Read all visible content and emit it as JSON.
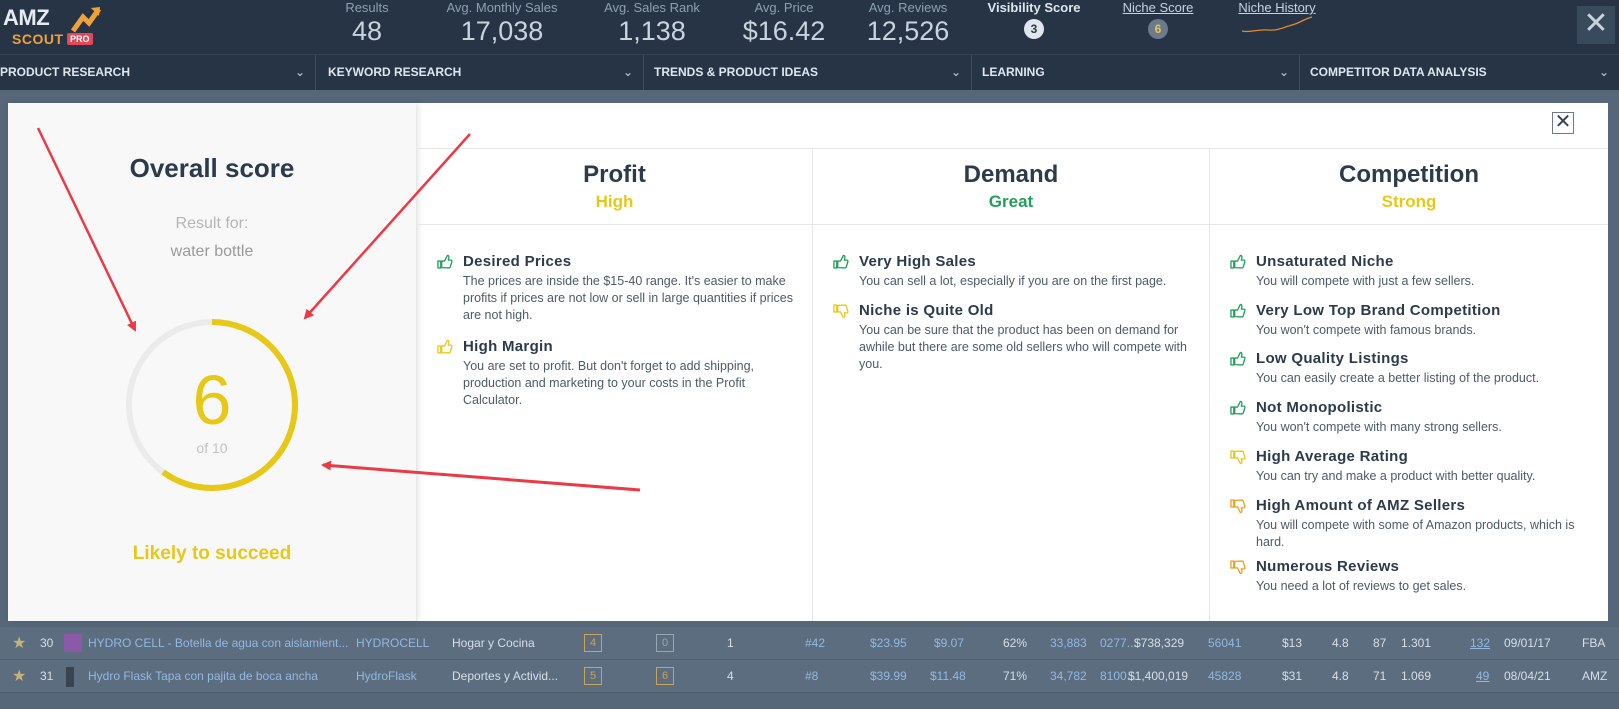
{
  "header": {
    "logo": {
      "amz": "AMZ",
      "scout": "SCOUT",
      "pro": "PRO"
    },
    "stats": [
      {
        "label": "Results",
        "value": "48"
      },
      {
        "label": "Avg. Monthly Sales",
        "value": "17,038"
      },
      {
        "label": "Avg. Sales Rank",
        "value": "1,138"
      },
      {
        "label": "Avg. Price",
        "value": "$16.42"
      },
      {
        "label": "Avg. Reviews",
        "value": "12,526"
      }
    ],
    "visibility_score": {
      "label": "Visibility Score",
      "value": "3"
    },
    "niche_score": {
      "label": "Niche Score",
      "value": "6"
    },
    "niche_history": {
      "label": "Niche History"
    },
    "close_label": "✕"
  },
  "nav": [
    "PRODUCT RESEARCH",
    "KEYWORD RESEARCH",
    "TRENDS & PRODUCT IDEAS",
    "LEARNING",
    "COMPETITOR DATA ANALYSIS"
  ],
  "rows": [
    {
      "rank": "30",
      "title": "HYDRO CELL - Botella de agua con aislamient...",
      "brand": "HYDROCELL",
      "category": "Hogar y Cocina",
      "box1": "4",
      "box2": "0",
      "sellers": "1",
      "bsr": "#42",
      "price": "$23.95",
      "fees": "$9.07",
      "net": "62%",
      "sales": "33,883",
      "code": "0277...",
      "revenue": "$738,329",
      "reviews": "56041",
      "rpr": "$13",
      "rating": "4.8",
      "lqs": "87",
      "weight": "1.301",
      "variations": "132",
      "date": "09/01/17",
      "seller": "FBA"
    },
    {
      "rank": "31",
      "title": "Hydro Flask Tapa con pajita de boca ancha",
      "brand": "HydroFlask",
      "category": "Deportes y Activid...",
      "box1": "5",
      "box2": "6",
      "sellers": "4",
      "bsr": "#8",
      "price": "$39.99",
      "fees": "$11.48",
      "net": "71%",
      "sales": "34,782",
      "code": "8100...",
      "revenue": "$1,400,019",
      "reviews": "45828",
      "rpr": "$31",
      "rating": "4.8",
      "lqs": "71",
      "weight": "1.069",
      "variations": "49",
      "date": "08/04/21",
      "seller": "AMZ"
    }
  ],
  "modal": {
    "overall_title": "Overall score",
    "result_for": "Result for:",
    "query": "water bottle",
    "score": "6",
    "score_of": "of 10",
    "score_value": 6,
    "score_max": 10,
    "verdict": "Likely to succeed",
    "close_label": "✕",
    "colors": {
      "yellow": "#e8c817",
      "green": "#20a05a",
      "orange": "#f0a020"
    },
    "columns": [
      {
        "title": "Profit",
        "rating": "High",
        "rating_color": "yellow",
        "items": [
          {
            "icon": "thumbs-up-icon",
            "color": "green",
            "title": "Desired Prices",
            "desc": "The prices are inside the $15-40 range. It's easier to make profits if prices are not low or sell in large quantities if prices are not high."
          },
          {
            "icon": "thumbs-up-icon",
            "color": "yellow",
            "title": "High Margin",
            "desc": "You are set to profit. But don't forget to add shipping, production and marketing to your costs in the Profit Calculator."
          }
        ]
      },
      {
        "title": "Demand",
        "rating": "Great",
        "rating_color": "green",
        "items": [
          {
            "icon": "thumbs-up-icon",
            "color": "green",
            "title": "Very High Sales",
            "desc": "You can sell a lot, especially if you are on the first page."
          },
          {
            "icon": "thumbs-down-icon",
            "color": "yellow",
            "title": "Niche is Quite Old",
            "desc": "You can be sure that the product has been on demand for awhile but there are some old sellers who will compete with you."
          }
        ]
      },
      {
        "title": "Competition",
        "rating": "Strong",
        "rating_color": "yellow",
        "items": [
          {
            "icon": "thumbs-up-icon",
            "color": "green",
            "title": "Unsaturated Niche",
            "desc": "You will compete with just a few sellers."
          },
          {
            "icon": "thumbs-up-icon",
            "color": "green",
            "title": "Very Low Top Brand Competition",
            "desc": "You won't compete with famous brands."
          },
          {
            "icon": "thumbs-up-icon",
            "color": "green",
            "title": "Low Quality Listings",
            "desc": "You can easily create a better listing of the product."
          },
          {
            "icon": "thumbs-up-icon",
            "color": "green",
            "title": "Not Monopolistic",
            "desc": "You won't compete with many strong sellers."
          },
          {
            "icon": "thumbs-down-icon",
            "color": "yellow",
            "title": "High Average Rating",
            "desc": "You can try and make a product with better quality."
          },
          {
            "icon": "thumbs-down-icon",
            "color": "orange",
            "title": "High Amount of AMZ Sellers",
            "desc": "You will compete with some of Amazon products, which is hard."
          },
          {
            "icon": "thumbs-down-icon",
            "color": "orange",
            "title": "Numerous Reviews",
            "desc": "You need a lot of reviews to get sales."
          }
        ]
      }
    ]
  }
}
